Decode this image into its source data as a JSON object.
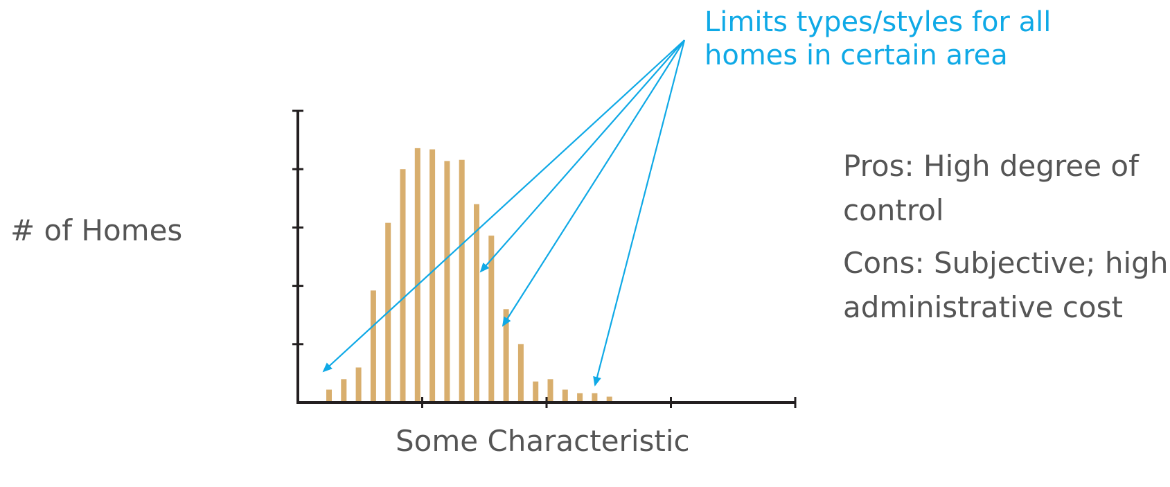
{
  "chart_data": {
    "type": "bar",
    "xlabel": "Some Characteristic",
    "ylabel": "# of Homes",
    "x_ticks_count": 4,
    "y_ticks_count": 5,
    "ylim": [
      0,
      5
    ],
    "values": [
      0.22,
      0.4,
      0.6,
      1.92,
      3.08,
      4.0,
      4.36,
      4.34,
      4.14,
      4.16,
      3.4,
      2.86,
      1.6,
      1.0,
      0.36,
      0.4,
      0.22,
      0.16,
      0.16,
      0.1
    ],
    "bar_color": "#d8ae6d",
    "axis_color": "#231f20",
    "annotation": {
      "text_lines": [
        "Limits types/styles for all",
        "homes in certain area"
      ],
      "color": "#0fa9e6",
      "arrow_targets": [
        0,
        10,
        12,
        18
      ]
    },
    "grid": false
  },
  "notes": {
    "pros": [
      "Pros: High degree of",
      "control"
    ],
    "cons": [
      "Cons: Subjective; high",
      "administrative cost"
    ]
  }
}
